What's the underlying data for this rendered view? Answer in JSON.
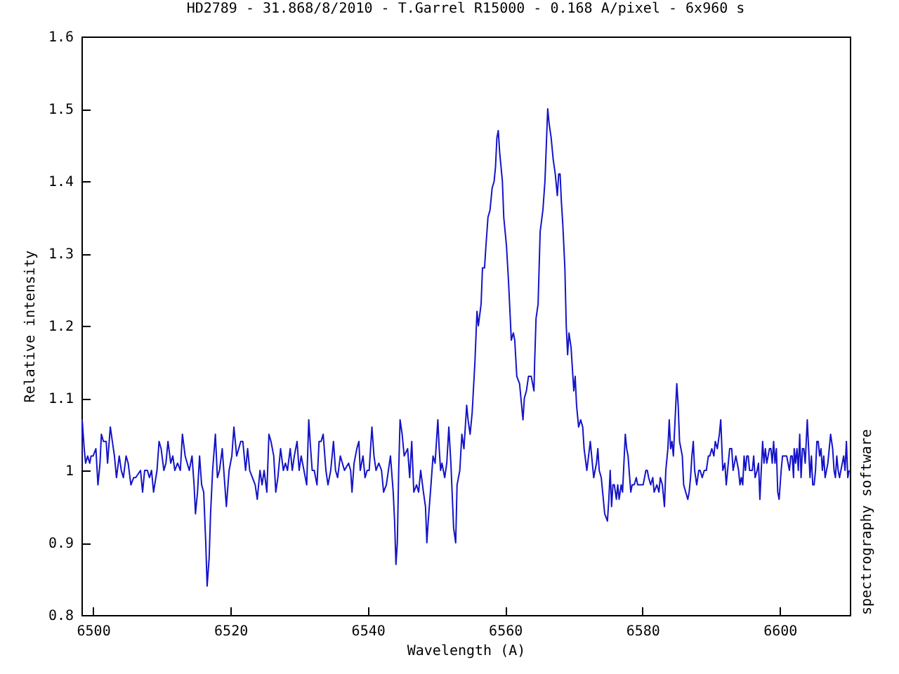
{
  "chart_data": {
    "type": "line",
    "title": "HD2789 - 31.868/8/2010 - T.Garrel R15000 - 0.168 A/pixel - 6x960 s",
    "xlabel": "Wavelength (A)",
    "ylabel": "Relative intensity",
    "annotations": [
      "spectrography software"
    ],
    "x": [
      6498.3,
      6498.4,
      6498.7,
      6498.9,
      6499.2,
      6499.5,
      6499.7,
      6500.0,
      6500.4,
      6500.7,
      6501.0,
      6501.2,
      6501.5,
      6501.9,
      6502.1,
      6502.5,
      6502.8,
      6503.1,
      6503.4,
      6503.8,
      6504.1,
      6504.4,
      6504.8,
      6505.1,
      6505.5,
      6505.9,
      6506.2,
      6506.9,
      6507.2,
      6507.5,
      6507.9,
      6508.2,
      6508.5,
      6508.8,
      6509.3,
      6509.6,
      6509.9,
      6510.3,
      6510.6,
      6510.9,
      6511.3,
      6511.6,
      6511.9,
      6512.3,
      6512.7,
      6513.0,
      6513.4,
      6513.7,
      6514.0,
      6514.4,
      6514.7,
      6514.9,
      6515.2,
      6515.5,
      6515.8,
      6516.1,
      6516.4,
      6516.6,
      6516.9,
      6517.1,
      6517.4,
      6517.8,
      6518.1,
      6518.4,
      6518.8,
      6519.1,
      6519.4,
      6519.8,
      6520.2,
      6520.5,
      6520.9,
      6521.2,
      6521.5,
      6521.8,
      6522.2,
      6522.5,
      6522.8,
      6523.2,
      6523.6,
      6523.9,
      6524.3,
      6524.6,
      6524.9,
      6525.3,
      6525.6,
      6525.9,
      6526.3,
      6526.6,
      6526.9,
      6527.3,
      6527.7,
      6528.0,
      6528.3,
      6528.7,
      6529.0,
      6529.3,
      6529.7,
      6530.0,
      6530.3,
      6530.7,
      6531.1,
      6531.4,
      6531.6,
      6531.9,
      6532.2,
      6532.6,
      6532.9,
      6533.2,
      6533.5,
      6533.9,
      6534.2,
      6534.6,
      6535.0,
      6535.3,
      6535.6,
      6536.0,
      6536.3,
      6536.6,
      6537.2,
      6537.5,
      6537.7,
      6538.0,
      6538.4,
      6538.7,
      6538.9,
      6539.3,
      6539.6,
      6539.9,
      6540.2,
      6540.6,
      6540.9,
      6541.2,
      6541.6,
      6542.0,
      6542.3,
      6542.7,
      6543.0,
      6543.3,
      6543.7,
      6543.9,
      6544.1,
      6544.3,
      6544.5,
      6544.7,
      6545.0,
      6545.3,
      6545.8,
      6546.1,
      6546.4,
      6546.7,
      6547.1,
      6547.4,
      6547.7,
      6548.1,
      6548.4,
      6548.6,
      6548.8,
      6549.2,
      6549.5,
      6549.8,
      6550.2,
      6550.4,
      6550.6,
      6550.8,
      6551.2,
      6551.5,
      6551.8,
      6552.1,
      6552.5,
      6552.8,
      6553.0,
      6553.4,
      6553.7,
      6554.0,
      6554.4,
      6554.6,
      6554.9,
      6555.2,
      6555.6,
      6555.9,
      6556.1,
      6556.5,
      6556.7,
      6557.0,
      6557.2,
      6557.5,
      6557.8,
      6558.1,
      6558.4,
      6558.6,
      6558.8,
      6559.0,
      6559.2,
      6559.4,
      6559.6,
      6559.8,
      6560.2,
      6560.5,
      6560.7,
      6560.9,
      6561.2,
      6561.4,
      6561.7,
      6562.1,
      6562.3,
      6562.6,
      6562.8,
      6563.1,
      6563.4,
      6563.8,
      6564.2,
      6564.3,
      6564.5,
      6564.8,
      6565.1,
      6565.5,
      6565.8,
      6566.0,
      6566.2,
      6566.4,
      6566.7,
      6567.0,
      6567.3,
      6567.6,
      6567.8,
      6568.0,
      6568.2,
      6568.4,
      6568.7,
      6568.9,
      6569.1,
      6569.3,
      6569.6,
      6569.8,
      6570.0,
      6570.2,
      6570.4,
      6570.7,
      6571.0,
      6571.3,
      6571.5,
      6571.9,
      6572.4,
      6572.9,
      6573.3,
      6573.5,
      6573.7,
      6574.0,
      6574.2,
      6574.5,
      6574.9,
      6575.1,
      6575.3,
      6575.5,
      6575.7,
      6575.9,
      6576.2,
      6576.4,
      6576.6,
      6576.9,
      6577.1,
      6577.3,
      6577.5,
      6577.7,
      6577.9,
      6578.3,
      6578.5,
      6578.8,
      6579.1,
      6579.3,
      6579.6,
      6579.9,
      6580.1,
      6580.5,
      6580.7,
      6580.9,
      6581.2,
      6581.5,
      6581.7,
      6582.1,
      6582.4,
      6582.6,
      6582.9,
      6583.2,
      6583.4,
      6583.7,
      6583.9,
      6584.1,
      6584.3,
      6584.5,
      6584.7,
      6585.0,
      6585.2,
      6585.4,
      6585.8,
      6586.0,
      6586.3,
      6586.6,
      6586.8,
      6587.0,
      6587.2,
      6587.4,
      6587.6,
      6587.9,
      6588.2,
      6588.4,
      6588.7,
      6589.0,
      6589.3,
      6589.6,
      6589.8,
      6590.1,
      6590.4,
      6590.6,
      6590.9,
      6591.2,
      6591.4,
      6591.7,
      6592.0,
      6592.2,
      6592.5,
      6592.7,
      6593.0,
      6593.2,
      6593.4,
      6593.6,
      6593.8,
      6594.0,
      6594.2,
      6594.4,
      6594.6,
      6594.8,
      6595.0,
      6595.2,
      6595.4,
      6595.6,
      6595.8,
      6596.0,
      6596.2,
      6596.4,
      6596.7,
      6596.9,
      6597.1,
      6597.3,
      6597.5,
      6597.7,
      6597.9,
      6598.1,
      6598.3,
      6598.5,
      6598.7,
      6598.9,
      6599.1,
      6599.3,
      6599.5,
      6599.7,
      6599.9,
      6600.2,
      6600.4,
      6600.6,
      6600.8,
      6601.0,
      6601.2,
      6601.4,
      6601.6,
      6601.8,
      6602.0,
      6602.1,
      6602.3,
      6602.5,
      6602.7,
      6602.9,
      6603.1,
      6603.3,
      6603.5,
      6603.7,
      6604.0,
      6604.2,
      6604.4,
      6604.6,
      6604.8,
      6605.0,
      6605.2,
      6605.4,
      6605.6,
      6605.8,
      6606.0,
      6606.2,
      6606.4,
      6606.6,
      6606.8,
      6607.0,
      6607.2,
      6607.4,
      6607.7,
      6607.9,
      6608.1,
      6608.3,
      6608.5,
      6608.7,
      6608.9,
      6609.1,
      6609.3,
      6609.5,
      6609.7,
      6609.9,
      6610.1
    ],
    "series": [
      {
        "color": "#1414c8",
        "values": [
          1.0,
          1.07,
          1.03,
          1.01,
          1.02,
          1.01,
          1.02,
          1.02,
          1.03,
          0.98,
          1.01,
          1.05,
          1.04,
          1.04,
          1.01,
          1.06,
          1.04,
          1.02,
          0.99,
          1.02,
          1.0,
          0.99,
          1.02,
          1.01,
          0.98,
          0.99,
          0.99,
          1.0,
          0.97,
          1.0,
          1.0,
          0.99,
          1.0,
          0.97,
          1.0,
          1.04,
          1.03,
          1.0,
          1.01,
          1.04,
          1.01,
          1.02,
          1.0,
          1.01,
          1.0,
          1.05,
          1.02,
          1.01,
          1.0,
          1.02,
          0.98,
          0.94,
          0.97,
          1.02,
          0.98,
          0.97,
          0.9,
          0.84,
          0.88,
          0.94,
          1.0,
          1.05,
          0.99,
          1.0,
          1.03,
          0.99,
          0.95,
          1.0,
          1.02,
          1.06,
          1.02,
          1.03,
          1.04,
          1.04,
          1.0,
          1.03,
          1.0,
          0.99,
          0.98,
          0.96,
          1.0,
          0.98,
          1.0,
          0.97,
          1.05,
          1.04,
          1.02,
          0.97,
          0.99,
          1.03,
          1.0,
          1.01,
          1.0,
          1.03,
          1.0,
          1.02,
          1.04,
          1.0,
          1.02,
          1.0,
          0.98,
          1.07,
          1.04,
          1.0,
          1.0,
          0.98,
          1.04,
          1.04,
          1.05,
          1.0,
          0.98,
          1.0,
          1.04,
          1.0,
          0.99,
          1.02,
          1.01,
          1.0,
          1.01,
          1.0,
          0.97,
          1.01,
          1.03,
          1.04,
          1.0,
          1.02,
          0.99,
          1.0,
          1.0,
          1.06,
          1.02,
          1.0,
          1.01,
          1.0,
          0.97,
          0.98,
          1.0,
          1.02,
          0.97,
          0.93,
          0.87,
          0.9,
          1.0,
          1.07,
          1.05,
          1.02,
          1.03,
          0.99,
          1.04,
          0.97,
          0.98,
          0.97,
          1.0,
          0.97,
          0.95,
          0.9,
          0.93,
          0.98,
          1.02,
          1.01,
          1.07,
          1.03,
          1.0,
          1.01,
          0.99,
          1.01,
          1.06,
          1.01,
          0.92,
          0.9,
          0.98,
          1.0,
          1.05,
          1.03,
          1.09,
          1.07,
          1.05,
          1.08,
          1.15,
          1.22,
          1.2,
          1.23,
          1.28,
          1.28,
          1.31,
          1.35,
          1.36,
          1.39,
          1.4,
          1.42,
          1.46,
          1.47,
          1.44,
          1.42,
          1.4,
          1.35,
          1.31,
          1.26,
          1.22,
          1.18,
          1.19,
          1.18,
          1.13,
          1.12,
          1.1,
          1.07,
          1.1,
          1.11,
          1.13,
          1.13,
          1.11,
          1.15,
          1.21,
          1.23,
          1.33,
          1.36,
          1.4,
          1.45,
          1.5,
          1.48,
          1.46,
          1.43,
          1.41,
          1.38,
          1.41,
          1.41,
          1.37,
          1.34,
          1.28,
          1.2,
          1.16,
          1.19,
          1.17,
          1.14,
          1.11,
          1.13,
          1.09,
          1.06,
          1.07,
          1.06,
          1.03,
          1.0,
          1.04,
          0.99,
          1.01,
          1.03,
          1.0,
          0.99,
          0.97,
          0.94,
          0.93,
          0.96,
          1.0,
          0.95,
          0.98,
          0.98,
          0.96,
          0.98,
          0.96,
          0.98,
          0.97,
          1.01,
          1.05,
          1.03,
          1.02,
          0.97,
          0.98,
          0.98,
          0.99,
          0.98,
          0.98,
          0.98,
          0.98,
          1.0,
          1.0,
          0.99,
          0.98,
          0.99,
          0.97,
          0.98,
          0.97,
          0.99,
          0.98,
          0.95,
          1.0,
          1.03,
          1.07,
          1.03,
          1.04,
          1.02,
          1.06,
          1.12,
          1.09,
          1.04,
          1.02,
          0.98,
          0.97,
          0.96,
          0.97,
          0.99,
          1.02,
          1.04,
          1.0,
          0.98,
          1.0,
          1.0,
          0.99,
          1.0,
          1.0,
          1.02,
          1.02,
          1.03,
          1.02,
          1.04,
          1.03,
          1.05,
          1.07,
          1.0,
          1.01,
          0.98,
          1.01,
          1.03,
          1.03,
          1.0,
          1.01,
          1.02,
          1.01,
          1.0,
          0.98,
          0.99,
          0.98,
          1.02,
          1.0,
          1.02,
          1.02,
          1.0,
          1.0,
          1.0,
          1.02,
          0.99,
          1.0,
          1.01,
          0.96,
          1.0,
          1.04,
          1.01,
          1.03,
          1.01,
          1.02,
          1.03,
          1.03,
          1.01,
          1.04,
          1.01,
          1.03,
          0.97,
          0.96,
          1.0,
          1.02,
          1.02,
          1.02,
          1.02,
          1.01,
          1.0,
          1.02,
          1.02,
          0.99,
          1.03,
          1.01,
          1.03,
          1.0,
          1.05,
          0.99,
          1.03,
          1.03,
          1.01,
          1.07,
          1.03,
          0.99,
          1.02,
          0.98,
          0.98,
          1.0,
          1.04,
          1.04,
          1.02,
          1.03,
          1.0,
          1.02,
          0.99,
          1.0,
          1.01,
          1.03,
          1.05,
          1.03,
          1.0,
          0.99,
          1.02,
          1.0,
          0.99,
          1.0,
          1.01,
          1.02,
          1.0,
          1.04,
          0.99,
          1.0
        ]
      }
    ],
    "xlim": [
      6498.3,
      6610.2
    ],
    "ylim": [
      0.8,
      1.6
    ],
    "xticks": [
      6500,
      6520,
      6540,
      6560,
      6580,
      6600
    ],
    "yticks": [
      0.8,
      0.9,
      1,
      1.1,
      1.2,
      1.3,
      1.4,
      1.5,
      1.6
    ],
    "line_style": "solid"
  }
}
